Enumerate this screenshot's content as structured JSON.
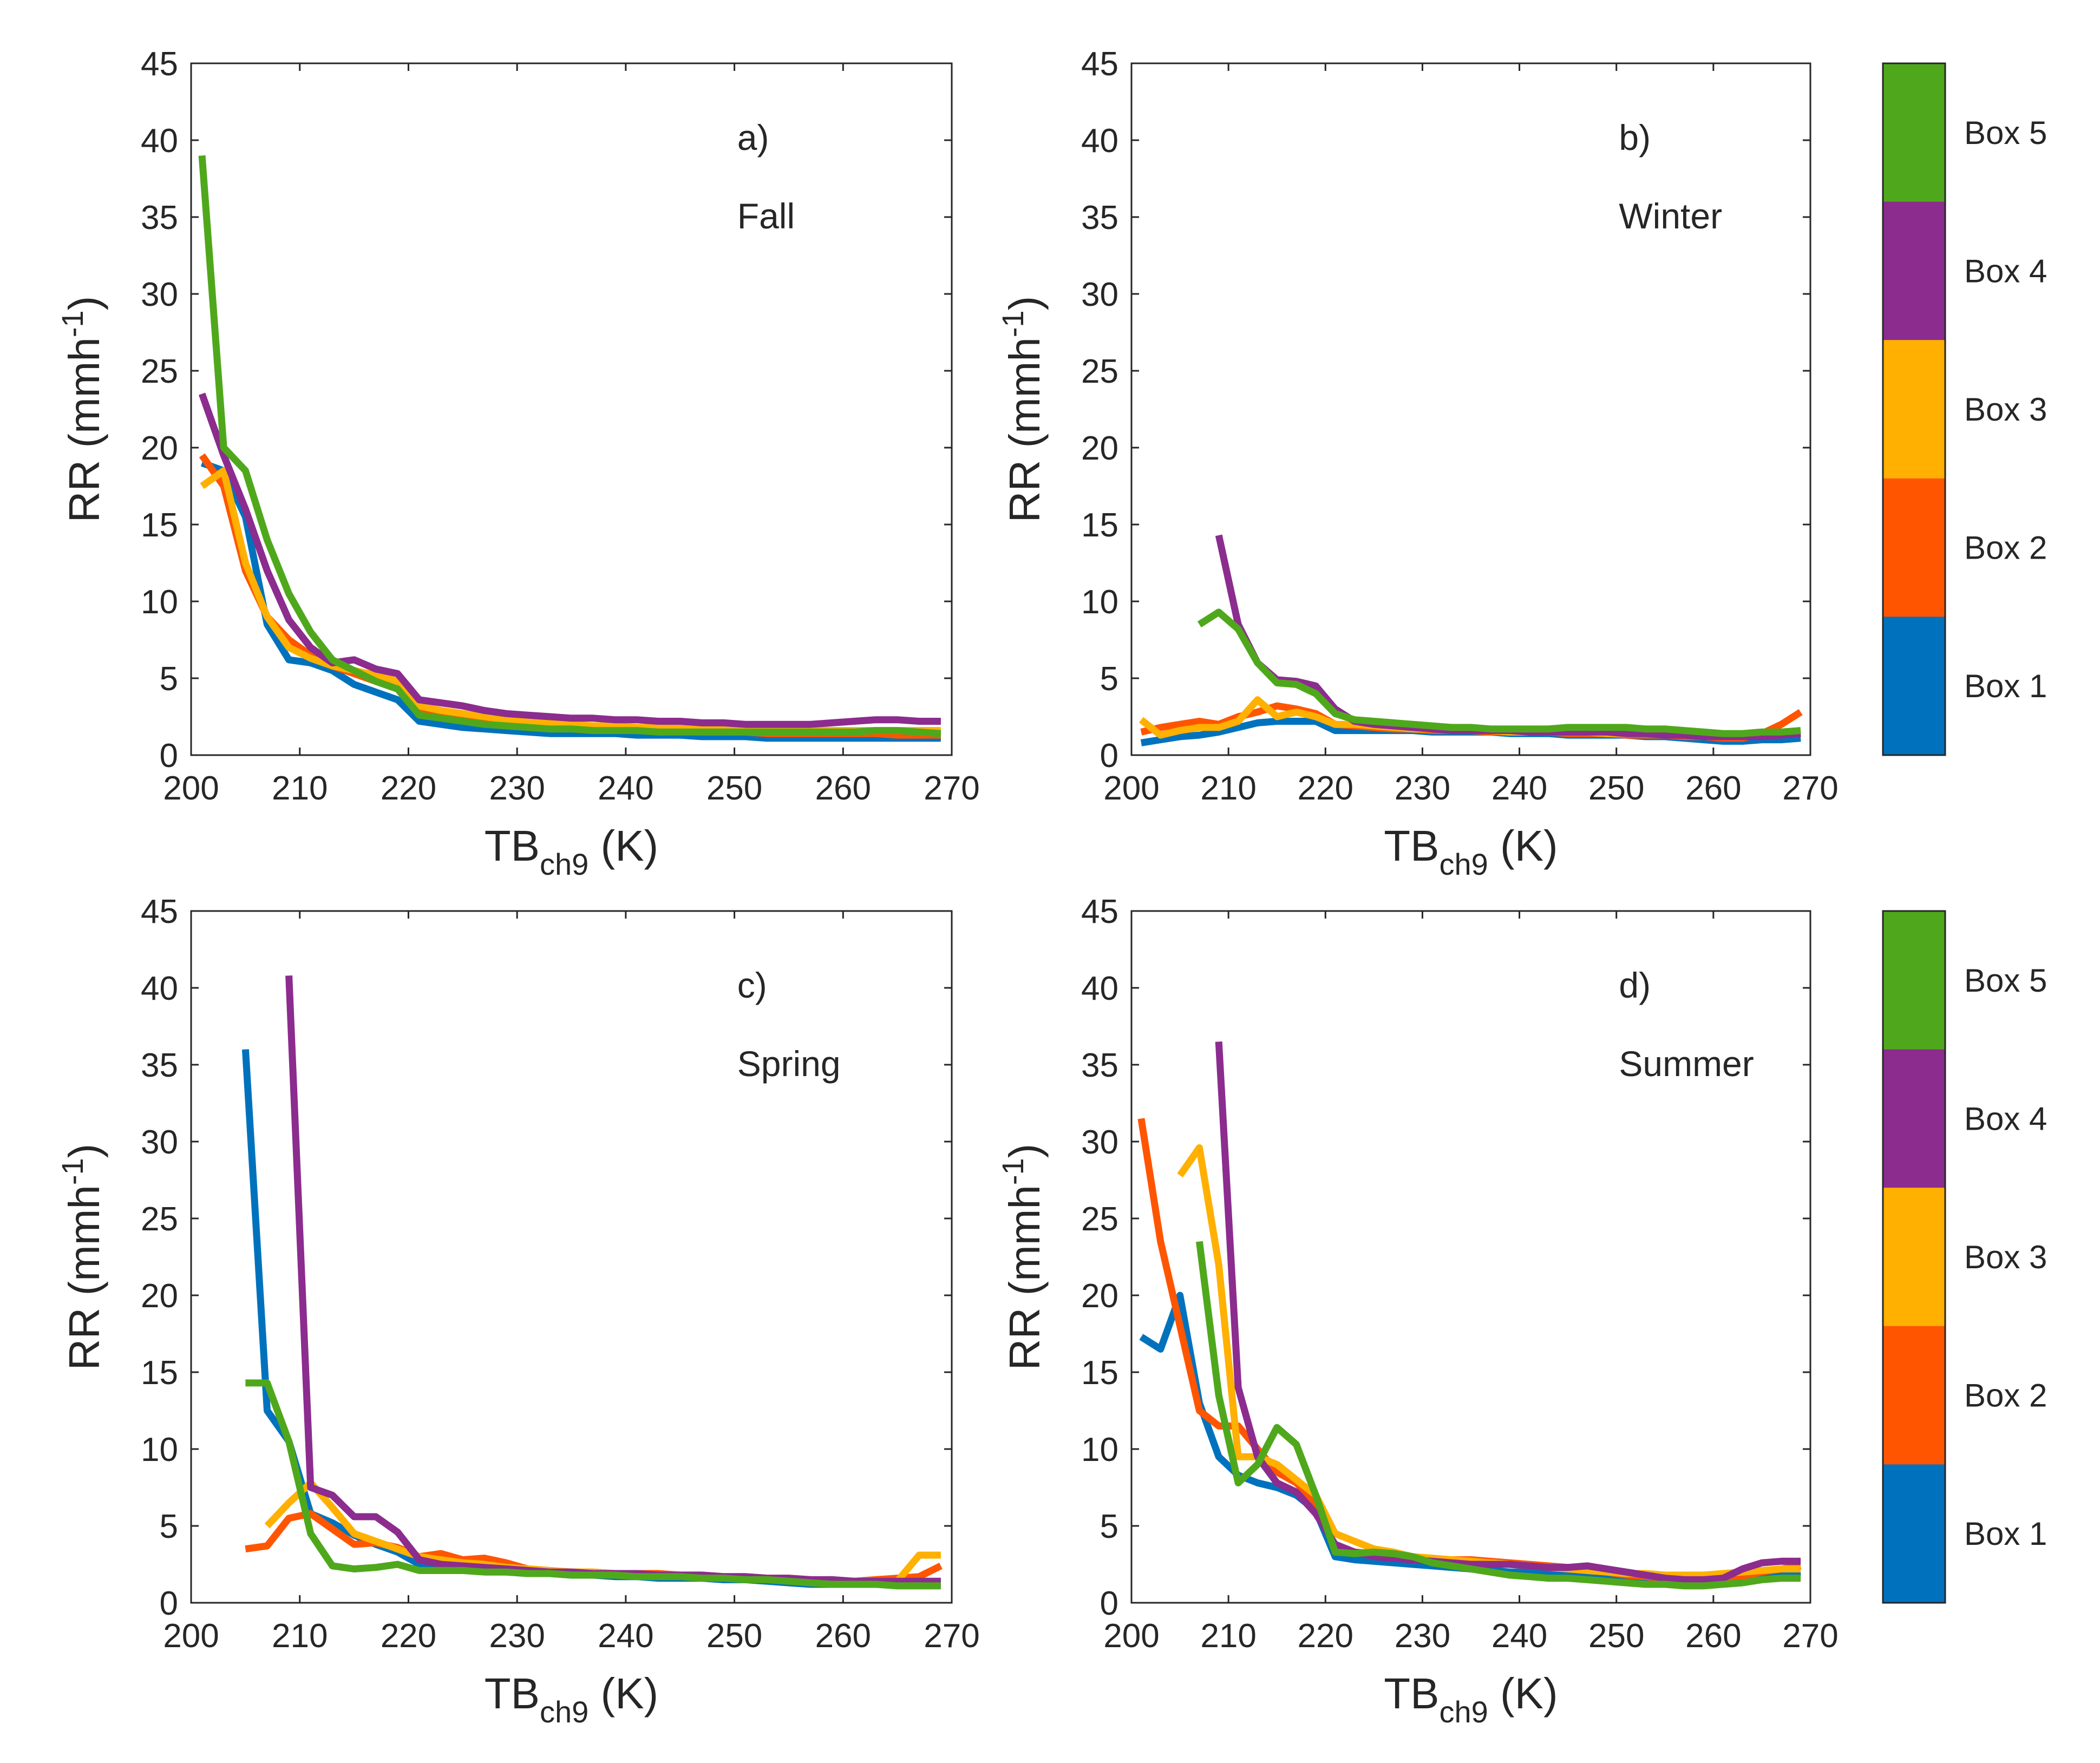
{
  "colors": {
    "Box 1": "#0072BD",
    "Box 2": "#FF5500",
    "Box 3": "#FFB000",
    "Box 4": "#8B2C8E",
    "Box 5": "#4FA81C"
  },
  "legend": {
    "items": [
      "Box 5",
      "Box 4",
      "Box 3",
      "Box 2",
      "Box 1"
    ]
  },
  "chart_data": [
    {
      "type": "line",
      "panel_label": "a)",
      "season": "Fall",
      "title": "",
      "xlabel_main": "TB",
      "xlabel_sub": "ch9",
      "xlabel_unit": " (K)",
      "ylabel_main": "RR (mmh",
      "ylabel_sup": "-1",
      "ylabel_end": ")",
      "xlim": [
        200,
        270
      ],
      "ylim": [
        0,
        45
      ],
      "xticks": [
        200,
        210,
        220,
        230,
        240,
        250,
        260,
        270
      ],
      "yticks": [
        0,
        5,
        10,
        15,
        20,
        25,
        30,
        35,
        40,
        45
      ],
      "x": [
        201,
        203,
        205,
        207,
        209,
        211,
        213,
        215,
        217,
        219,
        221,
        223,
        225,
        227,
        229,
        231,
        233,
        235,
        237,
        239,
        241,
        243,
        245,
        247,
        249,
        251,
        253,
        255,
        257,
        259,
        261,
        263,
        265,
        267,
        269
      ],
      "series": [
        {
          "name": "Box 1",
          "values": [
            19,
            18.5,
            15.5,
            8.5,
            6.2,
            6.0,
            5.5,
            4.6,
            4.1,
            3.6,
            2.2,
            2.0,
            1.8,
            1.7,
            1.6,
            1.5,
            1.4,
            1.4,
            1.4,
            1.4,
            1.3,
            1.3,
            1.3,
            1.2,
            1.2,
            1.2,
            1.1,
            1.1,
            1.1,
            1.1,
            1.1,
            1.1,
            1.1,
            1.1,
            1.1
          ]
        },
        {
          "name": "Box 2",
          "values": [
            19.5,
            17.5,
            12.0,
            9.0,
            7.5,
            6.5,
            5.8,
            5.3,
            4.8,
            4.3,
            2.8,
            2.5,
            2.3,
            2.1,
            2.0,
            1.9,
            1.8,
            1.8,
            1.7,
            1.7,
            1.6,
            1.6,
            1.6,
            1.5,
            1.5,
            1.5,
            1.4,
            1.4,
            1.4,
            1.4,
            1.4,
            1.4,
            1.3,
            1.3,
            1.3
          ]
        },
        {
          "name": "Box 3",
          "values": [
            17.5,
            18.5,
            12.5,
            9.0,
            7.0,
            6.3,
            5.8,
            5.5,
            5.2,
            4.8,
            3.2,
            2.9,
            2.7,
            2.5,
            2.3,
            2.2,
            2.1,
            2.0,
            1.9,
            1.9,
            1.8,
            1.8,
            1.8,
            1.7,
            1.7,
            1.7,
            1.6,
            1.6,
            1.6,
            1.6,
            1.6,
            1.6,
            1.6,
            1.6,
            1.6
          ]
        },
        {
          "name": "Box 4",
          "values": [
            23.5,
            19.5,
            16.0,
            12.0,
            8.8,
            7.0,
            6.0,
            6.2,
            5.6,
            5.3,
            3.6,
            3.4,
            3.2,
            2.9,
            2.7,
            2.6,
            2.5,
            2.4,
            2.4,
            2.3,
            2.3,
            2.2,
            2.2,
            2.1,
            2.1,
            2.0,
            2.0,
            2.0,
            2.0,
            2.1,
            2.2,
            2.3,
            2.3,
            2.2,
            2.2
          ]
        },
        {
          "name": "Box 5",
          "values": [
            39.0,
            20.0,
            18.5,
            14.0,
            10.5,
            8.0,
            6.2,
            5.5,
            4.8,
            4.3,
            2.6,
            2.4,
            2.2,
            2.0,
            1.9,
            1.8,
            1.7,
            1.7,
            1.6,
            1.6,
            1.6,
            1.5,
            1.5,
            1.5,
            1.5,
            1.5,
            1.5,
            1.5,
            1.5,
            1.5,
            1.5,
            1.6,
            1.6,
            1.5,
            1.4
          ]
        }
      ]
    },
    {
      "type": "line",
      "panel_label": "b)",
      "season": "Winter",
      "title": "",
      "xlabel_main": "TB",
      "xlabel_sub": "ch9",
      "xlabel_unit": " (K)",
      "ylabel_main": "RR (mmh",
      "ylabel_sup": "-1",
      "ylabel_end": ")",
      "xlim": [
        200,
        270
      ],
      "ylim": [
        0,
        45
      ],
      "xticks": [
        200,
        210,
        220,
        230,
        240,
        250,
        260,
        270
      ],
      "yticks": [
        0,
        5,
        10,
        15,
        20,
        25,
        30,
        35,
        40,
        45
      ],
      "x": [
        201,
        203,
        205,
        207,
        209,
        211,
        213,
        215,
        217,
        219,
        221,
        223,
        225,
        227,
        229,
        231,
        233,
        235,
        237,
        239,
        241,
        243,
        245,
        247,
        249,
        251,
        253,
        255,
        257,
        259,
        261,
        263,
        265,
        267,
        269
      ],
      "series": [
        {
          "name": "Box 1",
          "values": [
            0.8,
            1.0,
            1.2,
            1.3,
            1.5,
            1.8,
            2.1,
            2.2,
            2.2,
            2.2,
            1.6,
            1.6,
            1.6,
            1.6,
            1.6,
            1.5,
            1.5,
            1.5,
            1.5,
            1.4,
            1.4,
            1.4,
            1.3,
            1.3,
            1.3,
            1.3,
            1.2,
            1.2,
            1.1,
            1.0,
            0.9,
            0.9,
            1.0,
            1.0,
            1.1
          ]
        },
        {
          "name": "Box 2",
          "values": [
            1.5,
            1.8,
            2.0,
            2.2,
            2.0,
            2.5,
            2.8,
            3.2,
            3.0,
            2.7,
            2.0,
            1.9,
            1.8,
            1.7,
            1.7,
            1.6,
            1.6,
            1.6,
            1.5,
            1.5,
            1.5,
            1.5,
            1.4,
            1.4,
            1.4,
            1.3,
            1.3,
            1.3,
            1.2,
            1.2,
            1.1,
            1.1,
            1.4,
            2.0,
            2.8
          ]
        },
        {
          "name": "Box 3",
          "values": [
            2.3,
            1.3,
            1.6,
            1.8,
            1.8,
            2.2,
            3.6,
            2.5,
            2.8,
            2.5,
            2.0,
            2.0,
            1.9,
            1.8,
            1.7,
            1.7,
            1.6,
            1.6,
            1.6,
            1.5,
            1.5,
            1.5,
            1.5,
            1.5,
            1.4,
            1.4,
            1.4,
            1.4,
            1.3,
            1.3,
            1.3,
            1.3,
            1.3,
            1.4,
            1.5
          ]
        },
        {
          "name": "Box 4",
          "values": [
            null,
            null,
            null,
            null,
            14.3,
            8.5,
            6.0,
            4.9,
            4.8,
            4.5,
            3.0,
            2.2,
            2.0,
            1.9,
            1.8,
            1.7,
            1.6,
            1.6,
            1.6,
            1.6,
            1.5,
            1.5,
            1.5,
            1.5,
            1.5,
            1.4,
            1.4,
            1.3,
            1.3,
            1.2,
            1.2,
            1.2,
            1.2,
            1.3,
            1.4
          ]
        },
        {
          "name": "Box 5",
          "values": [
            null,
            null,
            null,
            8.5,
            9.3,
            8.2,
            6.0,
            4.7,
            4.6,
            4.0,
            2.7,
            2.3,
            2.2,
            2.1,
            2.0,
            1.9,
            1.8,
            1.8,
            1.7,
            1.7,
            1.7,
            1.7,
            1.8,
            1.8,
            1.8,
            1.8,
            1.7,
            1.7,
            1.6,
            1.5,
            1.4,
            1.4,
            1.5,
            1.5,
            1.6
          ]
        }
      ]
    },
    {
      "type": "line",
      "panel_label": "c)",
      "season": "Spring",
      "title": "",
      "xlabel_main": "TB",
      "xlabel_sub": "ch9",
      "xlabel_unit": " (K)",
      "ylabel_main": "RR (mmh",
      "ylabel_sup": "-1",
      "ylabel_end": ")",
      "xlim": [
        200,
        270
      ],
      "ylim": [
        0,
        45
      ],
      "xticks": [
        200,
        210,
        220,
        230,
        240,
        250,
        260,
        270
      ],
      "yticks": [
        0,
        5,
        10,
        15,
        20,
        25,
        30,
        35,
        40,
        45
      ],
      "x": [
        201,
        203,
        205,
        207,
        209,
        211,
        213,
        215,
        217,
        219,
        221,
        223,
        225,
        227,
        229,
        231,
        233,
        235,
        237,
        239,
        241,
        243,
        245,
        247,
        249,
        251,
        253,
        255,
        257,
        259,
        261,
        263,
        265,
        267,
        269
      ],
      "series": [
        {
          "name": "Box 1",
          "values": [
            null,
            null,
            36.0,
            12.5,
            10.5,
            5.8,
            5.2,
            4.4,
            3.8,
            3.3,
            2.5,
            2.3,
            2.2,
            2.1,
            2.0,
            1.9,
            1.9,
            1.8,
            1.8,
            1.7,
            1.7,
            1.6,
            1.6,
            1.6,
            1.5,
            1.5,
            1.4,
            1.3,
            1.2,
            1.2,
            1.2,
            1.2,
            1.2,
            1.2,
            1.2
          ]
        },
        {
          "name": "Box 2",
          "values": [
            null,
            null,
            3.5,
            3.7,
            5.5,
            5.8,
            4.8,
            3.8,
            3.9,
            3.6,
            3.0,
            3.2,
            2.8,
            2.9,
            2.6,
            2.2,
            2.1,
            2.0,
            2.0,
            1.9,
            1.9,
            1.9,
            1.8,
            1.8,
            1.7,
            1.7,
            1.6,
            1.6,
            1.5,
            1.4,
            1.4,
            1.5,
            1.6,
            1.7,
            2.4
          ]
        },
        {
          "name": "Box 3",
          "values": [
            null,
            null,
            null,
            5.0,
            6.5,
            7.8,
            6.2,
            4.5,
            4.0,
            3.5,
            3.0,
            2.8,
            2.6,
            2.5,
            2.3,
            2.2,
            2.1,
            2.0,
            2.0,
            1.9,
            1.9,
            1.8,
            1.8,
            1.7,
            1.7,
            1.6,
            1.6,
            1.5,
            1.5,
            1.5,
            1.4,
            1.4,
            1.4,
            3.1,
            3.1
          ]
        },
        {
          "name": "Box 4",
          "values": [
            null,
            null,
            null,
            null,
            40.8,
            7.5,
            7.0,
            5.6,
            5.6,
            4.6,
            2.8,
            2.5,
            2.4,
            2.3,
            2.2,
            2.1,
            2.0,
            2.0,
            1.9,
            1.9,
            1.9,
            1.8,
            1.8,
            1.8,
            1.7,
            1.7,
            1.6,
            1.6,
            1.5,
            1.5,
            1.4,
            1.4,
            1.4,
            1.4,
            1.4
          ]
        },
        {
          "name": "Box 5",
          "values": [
            null,
            null,
            14.3,
            14.3,
            10.5,
            4.5,
            2.4,
            2.2,
            2.3,
            2.5,
            2.1,
            2.1,
            2.1,
            2.0,
            2.0,
            1.9,
            1.9,
            1.8,
            1.8,
            1.8,
            1.7,
            1.7,
            1.7,
            1.6,
            1.6,
            1.5,
            1.5,
            1.4,
            1.3,
            1.2,
            1.2,
            1.2,
            1.1,
            1.1,
            1.1
          ]
        }
      ]
    },
    {
      "type": "line",
      "panel_label": "d)",
      "season": "Summer",
      "title": "",
      "xlabel_main": "TB",
      "xlabel_sub": "ch9",
      "xlabel_unit": " (K)",
      "ylabel_main": "RR (mmh",
      "ylabel_sup": "-1",
      "ylabel_end": ")",
      "xlim": [
        200,
        270
      ],
      "ylim": [
        0,
        45
      ],
      "xticks": [
        200,
        210,
        220,
        230,
        240,
        250,
        260,
        270
      ],
      "yticks": [
        0,
        5,
        10,
        15,
        20,
        25,
        30,
        35,
        40,
        45
      ],
      "x": [
        201,
        203,
        205,
        207,
        209,
        211,
        213,
        215,
        217,
        219,
        221,
        223,
        225,
        227,
        229,
        231,
        233,
        235,
        237,
        239,
        241,
        243,
        245,
        247,
        249,
        251,
        253,
        255,
        257,
        259,
        261,
        263,
        265,
        267,
        269
      ],
      "series": [
        {
          "name": "Box 1",
          "values": [
            17.3,
            16.5,
            20.0,
            13.0,
            9.5,
            8.3,
            7.8,
            7.5,
            7.0,
            6.0,
            3.0,
            2.8,
            2.7,
            2.6,
            2.5,
            2.4,
            2.3,
            2.2,
            2.1,
            2.0,
            2.0,
            1.9,
            1.8,
            1.8,
            1.7,
            1.6,
            1.5,
            1.4,
            1.4,
            1.4,
            1.5,
            1.6,
            1.8,
            1.9,
            2.0
          ]
        },
        {
          "name": "Box 2",
          "values": [
            31.5,
            23.5,
            18.0,
            12.5,
            11.5,
            11.5,
            10.0,
            8.5,
            7.8,
            6.5,
            3.5,
            3.3,
            3.2,
            3.0,
            2.9,
            2.8,
            2.8,
            2.8,
            2.7,
            2.6,
            2.5,
            2.4,
            2.3,
            2.1,
            2.0,
            1.8,
            1.7,
            1.6,
            1.5,
            1.4,
            1.5,
            1.7,
            2.0,
            2.2,
            2.4
          ]
        },
        {
          "name": "Box 3",
          "values": [
            null,
            null,
            27.8,
            29.6,
            22.0,
            9.5,
            9.5,
            9.0,
            8.0,
            7.0,
            4.5,
            4.0,
            3.5,
            3.3,
            3.0,
            2.9,
            2.8,
            2.7,
            2.6,
            2.5,
            2.4,
            2.3,
            2.2,
            2.1,
            2.0,
            1.9,
            1.9,
            1.8,
            1.8,
            1.8,
            1.9,
            2.0,
            2.1,
            2.2,
            2.2
          ]
        },
        {
          "name": "Box 4",
          "values": [
            null,
            null,
            null,
            null,
            36.5,
            14.0,
            9.5,
            7.8,
            7.2,
            5.8,
            3.8,
            3.3,
            3.0,
            2.9,
            2.8,
            2.7,
            2.6,
            2.5,
            2.5,
            2.5,
            2.4,
            2.3,
            2.3,
            2.4,
            2.2,
            2.0,
            1.8,
            1.6,
            1.5,
            1.5,
            1.6,
            2.2,
            2.6,
            2.7,
            2.7
          ]
        },
        {
          "name": "Box 5",
          "values": [
            null,
            null,
            null,
            23.5,
            13.5,
            7.8,
            9.0,
            11.4,
            10.3,
            7.0,
            3.3,
            3.2,
            3.3,
            3.2,
            3.0,
            2.6,
            2.4,
            2.2,
            2.0,
            1.8,
            1.7,
            1.6,
            1.6,
            1.5,
            1.4,
            1.3,
            1.2,
            1.2,
            1.1,
            1.1,
            1.2,
            1.3,
            1.5,
            1.6,
            1.6
          ]
        }
      ]
    }
  ]
}
